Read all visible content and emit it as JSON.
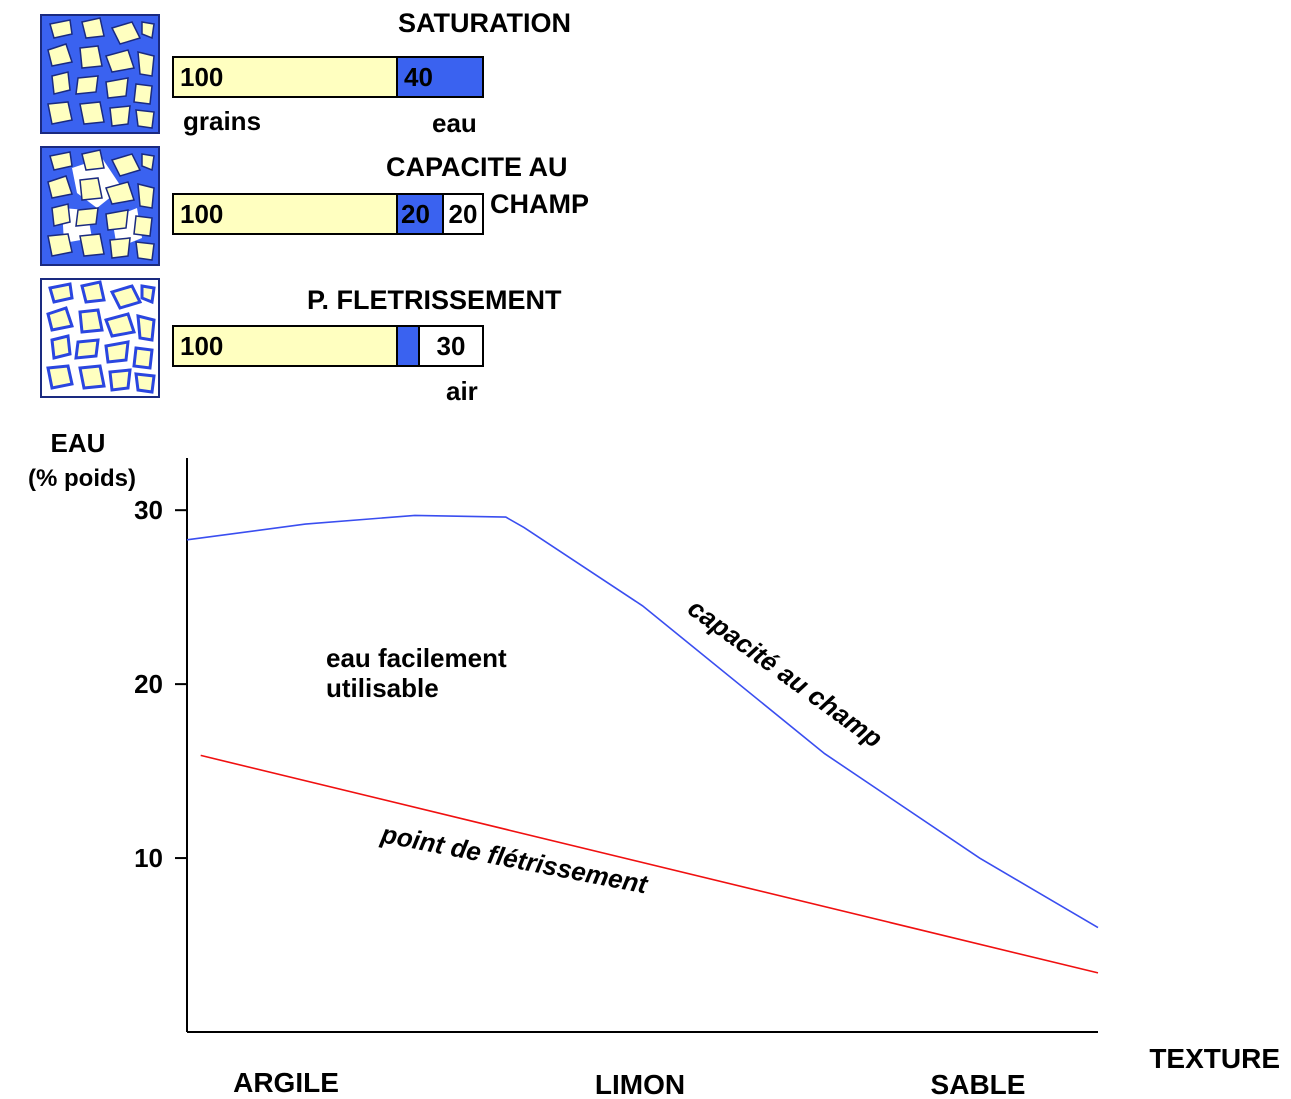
{
  "states": [
    {
      "title": "SATURATION",
      "title_lines": [
        "SATURATION"
      ],
      "grains": "100",
      "water": "40",
      "air": "",
      "grains_label": "grains",
      "water_label": "eau",
      "air_label": ""
    },
    {
      "title": "CAPACITE AU CHAMP",
      "title_lines": [
        "CAPACITE AU",
        "CHAMP"
      ],
      "grains": "100",
      "water": "20",
      "air": "20",
      "grains_label": "",
      "water_label": "",
      "air_label": ""
    },
    {
      "title": "P. FLETRISSEMENT",
      "title_lines": [
        "P. FLETRISSEMENT"
      ],
      "grains": "100",
      "water": "",
      "air": "30",
      "grains_label": "",
      "water_label": "",
      "air_label": "air"
    }
  ],
  "colors": {
    "grains": "#ffffc0",
    "water": "#3a62f0",
    "air": "#ffffff",
    "capacity_line": "#3a4ef0",
    "wilting_line": "#f01010"
  },
  "chart_data": {
    "type": "line",
    "ylabel_lines": [
      "EAU",
      "(% poids)"
    ],
    "xlabel": "TEXTURE",
    "categories": [
      "ARGILE",
      "LIMON",
      "SABLE"
    ],
    "yticks": [
      "30",
      "20",
      "10"
    ],
    "ytick_values": [
      30,
      20,
      10
    ],
    "ylim": [
      0,
      33
    ],
    "xlim": [
      0,
      100
    ],
    "series": [
      {
        "name": "capacité au champ",
        "color": "#3a4ef0",
        "points": [
          [
            0,
            28.3
          ],
          [
            13,
            29.2
          ],
          [
            25,
            29.7
          ],
          [
            35,
            29.6
          ],
          [
            37,
            29.0
          ],
          [
            50,
            24.5
          ],
          [
            70,
            16.0
          ],
          [
            87,
            10.0
          ],
          [
            100,
            6.0
          ]
        ]
      },
      {
        "name": "point de flétrissement",
        "color": "#f01010",
        "points": [
          [
            1.5,
            15.9
          ],
          [
            100,
            3.4
          ]
        ]
      }
    ],
    "annotations": [
      {
        "text_lines": [
          "eau facilement",
          "utilisable"
        ]
      },
      {
        "text": "capacité au champ"
      },
      {
        "text": "point de flétrissement"
      }
    ]
  }
}
